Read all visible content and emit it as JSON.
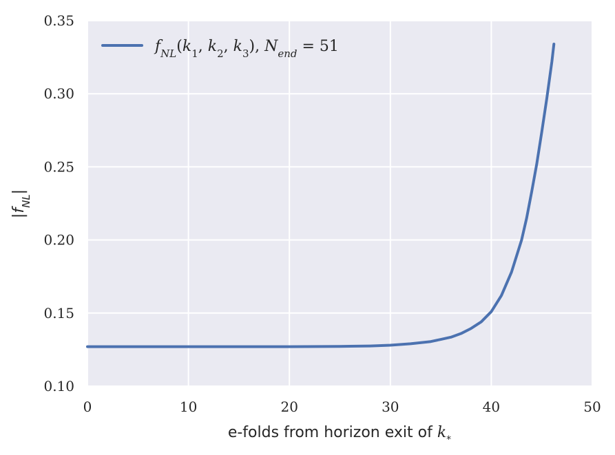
{
  "chart_data": {
    "type": "line",
    "title": "",
    "xlabel": "e-folds from horizon exit of k*",
    "ylabel": "|f_NL|",
    "xlim": [
      0,
      50
    ],
    "ylim": [
      0.1,
      0.35
    ],
    "x_ticks": [
      "0",
      "10",
      "20",
      "30",
      "40",
      "50"
    ],
    "y_ticks": [
      "0.10",
      "0.15",
      "0.20",
      "0.25",
      "0.30",
      "0.35"
    ],
    "grid": true,
    "legend_position": "top-left",
    "colors": {
      "background": "#EAEAF2",
      "grid": "#FFFFFF",
      "series": "#4C72B0"
    },
    "series": [
      {
        "name": "f_NL(k1, k2, k3), N_end = 51",
        "x": [
          0,
          5,
          10,
          15,
          20,
          25,
          28,
          30,
          32,
          34,
          35,
          36,
          37,
          38,
          39,
          40,
          41,
          42,
          43,
          43.5,
          44,
          44.5,
          45,
          45.5,
          46,
          46.2
        ],
        "y": [
          0.127,
          0.127,
          0.127,
          0.127,
          0.127,
          0.1272,
          0.1275,
          0.128,
          0.129,
          0.1305,
          0.132,
          0.1335,
          0.136,
          0.1395,
          0.144,
          0.151,
          0.162,
          0.178,
          0.2,
          0.215,
          0.233,
          0.252,
          0.274,
          0.297,
          0.322,
          0.334
        ]
      }
    ]
  }
}
